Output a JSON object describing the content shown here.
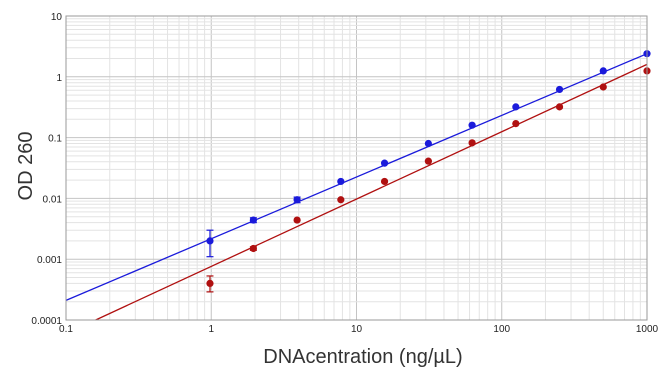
{
  "chart_data": {
    "type": "scatter",
    "title": "",
    "xlabel": "DNAcentration (ng/µL)",
    "ylabel": "OD 260",
    "x_scale": "log",
    "y_scale": "log",
    "xlim": [
      0.1,
      1000
    ],
    "ylim": [
      0.0001,
      10
    ],
    "x_tick_labels": [
      "0.1",
      "1",
      "10",
      "100",
      "1000"
    ],
    "y_tick_labels": [
      "0.0001",
      "0.001",
      "0.01",
      "0.1",
      "1",
      "10"
    ],
    "grid": true,
    "legend": "none",
    "series": [
      {
        "color": "#1a1adb",
        "x": [
          0.98,
          1.95,
          3.9,
          7.8,
          15.6,
          31.25,
          62.5,
          125,
          250,
          500,
          1000
        ],
        "y": [
          0.002,
          0.0044,
          0.0095,
          0.019,
          0.038,
          0.08,
          0.16,
          0.32,
          0.62,
          1.25,
          2.4
        ],
        "err_low": [
          0.0011,
          0.004,
          0.0085,
          null,
          null,
          null,
          null,
          null,
          null,
          null,
          null
        ],
        "err_high": [
          0.003,
          0.0048,
          0.0105,
          null,
          null,
          null,
          null,
          null,
          null,
          null,
          null
        ],
        "fit": {
          "x": [
            0.1,
            1000
          ],
          "y": [
            0.00021,
            2.4
          ]
        }
      },
      {
        "color": "#b01010",
        "x": [
          0.98,
          1.95,
          3.9,
          7.8,
          15.6,
          31.25,
          62.5,
          125,
          250,
          500,
          1000
        ],
        "y": [
          0.0004,
          0.0015,
          0.0044,
          0.0095,
          0.019,
          0.041,
          0.082,
          0.17,
          0.32,
          0.68,
          1.25
        ],
        "err_low": [
          0.00029,
          0.0014,
          null,
          null,
          null,
          null,
          null,
          null,
          null,
          null,
          null
        ],
        "err_high": [
          0.00053,
          0.0016,
          null,
          null,
          null,
          null,
          null,
          null,
          null,
          null,
          null
        ],
        "fit": {
          "x": [
            0.16,
            1000
          ],
          "y": [
            0.0001,
            1.6
          ]
        }
      }
    ]
  },
  "colors": {
    "grid_major": "#c4c4c4",
    "grid_minor": "#e3e3e3",
    "frame": "#9a9a9a",
    "blue_series": "#1a1adb",
    "red_series": "#b01010"
  }
}
